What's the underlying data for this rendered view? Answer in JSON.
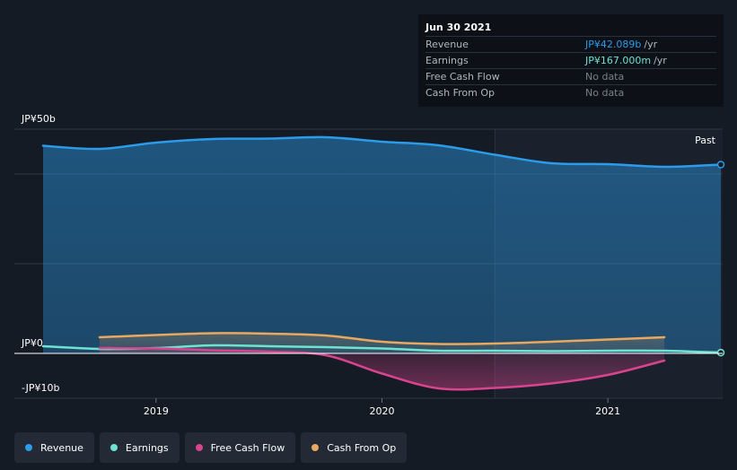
{
  "tooltip": {
    "date": "Jun 30 2021",
    "rows": [
      {
        "label": "Revenue",
        "value": "JP¥42.089b",
        "suffix": "/yr",
        "color": "#2b9bea"
      },
      {
        "label": "Earnings",
        "value": "JP¥167.000m",
        "suffix": "/yr",
        "color": "#6ee3d1"
      },
      {
        "label": "Free Cash Flow",
        "value": "No data",
        "suffix": "",
        "color": "#7a8089"
      },
      {
        "label": "Cash From Op",
        "value": "No data",
        "suffix": "",
        "color": "#7a8089"
      }
    ]
  },
  "chart_data": {
    "type": "area",
    "y_unit": "JP¥ billions",
    "ylim": [
      -10,
      50
    ],
    "y_tick_labels": [
      {
        "value": 50,
        "label": "JP¥50b"
      },
      {
        "value": 0,
        "label": "JP¥0"
      },
      {
        "value": -10,
        "label": "-JP¥10b"
      }
    ],
    "gridlines": [
      40,
      20
    ],
    "xlim": [
      2018.5,
      2021.5
    ],
    "x_ticks": [
      {
        "value": 2019,
        "label": "2019"
      },
      {
        "value": 2020,
        "label": "2020"
      },
      {
        "value": 2021,
        "label": "2021"
      }
    ],
    "past_label": "Past",
    "past_start": 2020.5,
    "series": [
      {
        "name": "Revenue",
        "color": "#2b9bea",
        "area": true,
        "x": [
          2018.5,
          2018.75,
          2019.0,
          2019.25,
          2019.5,
          2019.75,
          2020.0,
          2020.25,
          2020.5,
          2020.75,
          2021.0,
          2021.25,
          2021.5
        ],
        "y": [
          46.3,
          45.6,
          47.0,
          47.8,
          47.9,
          48.2,
          47.2,
          46.4,
          44.3,
          42.4,
          42.2,
          41.6,
          42.1
        ]
      },
      {
        "name": "Earnings",
        "color": "#6ee3d1",
        "area": false,
        "x": [
          2018.5,
          2018.75,
          2019.0,
          2019.25,
          2019.5,
          2019.75,
          2020.0,
          2020.25,
          2020.5,
          2020.75,
          2021.0,
          2021.25,
          2021.5
        ],
        "y": [
          1.6,
          1.0,
          1.2,
          1.8,
          1.6,
          1.4,
          1.1,
          0.6,
          0.6,
          0.5,
          0.6,
          0.6,
          0.17
        ]
      },
      {
        "name": "Free Cash Flow",
        "color": "#d9448f",
        "area": true,
        "x": [
          2018.75,
          2019.0,
          2019.25,
          2019.5,
          2019.75,
          2020.0,
          2020.25,
          2020.5,
          2020.75,
          2021.0,
          2021.25
        ],
        "y": [
          1.2,
          1.1,
          0.7,
          0.4,
          -0.4,
          -4.5,
          -7.8,
          -7.7,
          -6.7,
          -4.8,
          -1.6
        ]
      },
      {
        "name": "Cash From Op",
        "color": "#e8a860",
        "area": true,
        "x": [
          2018.75,
          2019.0,
          2019.25,
          2019.5,
          2019.75,
          2020.0,
          2020.25,
          2020.5,
          2020.75,
          2021.0,
          2021.25
        ],
        "y": [
          3.6,
          4.1,
          4.5,
          4.4,
          4.0,
          2.6,
          2.1,
          2.2,
          2.6,
          3.1,
          3.6
        ]
      }
    ]
  },
  "legend": [
    {
      "label": "Revenue",
      "color": "#2b9bea"
    },
    {
      "label": "Earnings",
      "color": "#6ee3d1"
    },
    {
      "label": "Free Cash Flow",
      "color": "#d9448f"
    },
    {
      "label": "Cash From Op",
      "color": "#e8a860"
    }
  ]
}
